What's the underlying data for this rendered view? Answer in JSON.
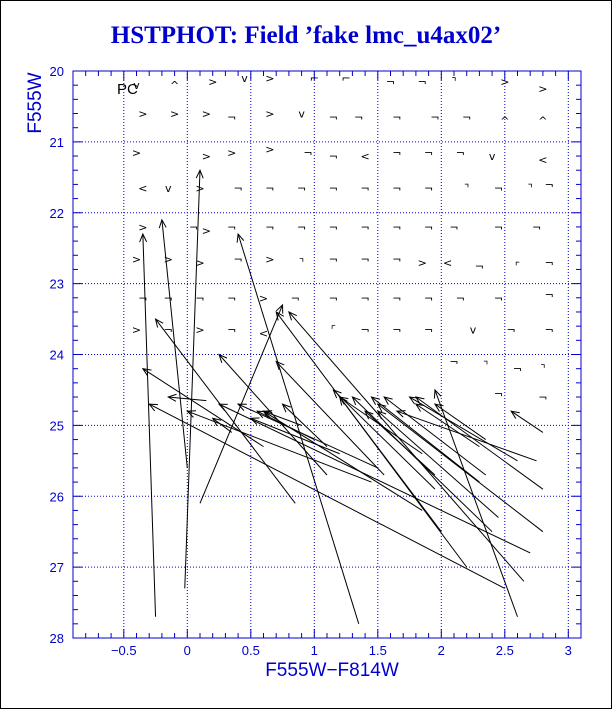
{
  "colors": {
    "axis": "#0000cc",
    "grid": "#0000cc",
    "marks": "#000000",
    "title": "#0000cc"
  },
  "chart_data": {
    "type": "scatter",
    "title": "HSTPHOT: Field ’fake lmc_u4ax02’",
    "xlabel": "F555W−F814W",
    "ylabel": "F555W",
    "panel_label": "PC",
    "xlim": [
      -0.9,
      3.1
    ],
    "ylim": [
      28,
      20
    ],
    "y_inverted": true,
    "grid": true,
    "x_ticks": [
      -0.5,
      0,
      0.5,
      1,
      1.5,
      2,
      2.5,
      3
    ],
    "x_tick_labels": [
      "−0.5",
      "0",
      "0.5",
      "1",
      "1.5",
      "2",
      "2.5",
      "3"
    ],
    "y_ticks": [
      20,
      21,
      22,
      23,
      24,
      25,
      26,
      27,
      28
    ],
    "y_tick_labels": [
      "20",
      "21",
      "22",
      "23",
      "24",
      "25",
      "26",
      "27",
      "28"
    ],
    "marker_glyphs": [
      "v",
      "^",
      ">",
      "<",
      "⌐",
      "¬",
      "⌝",
      "⌜"
    ],
    "small_markers": [
      [
        -0.4,
        20.2,
        "v"
      ],
      [
        -0.1,
        20.2,
        "^"
      ],
      [
        0.2,
        20.15,
        ">"
      ],
      [
        0.45,
        20.1,
        "v"
      ],
      [
        0.65,
        20.1,
        ">"
      ],
      [
        1.0,
        20.1,
        "⌐"
      ],
      [
        1.25,
        20.1,
        "⌐"
      ],
      [
        1.6,
        20.15,
        "¬"
      ],
      [
        1.85,
        20.15,
        "¬"
      ],
      [
        2.1,
        20.15,
        "⌝"
      ],
      [
        2.5,
        20.15,
        ">"
      ],
      [
        2.8,
        20.25,
        ">"
      ],
      [
        -0.35,
        20.6,
        ">"
      ],
      [
        -0.1,
        20.6,
        ">"
      ],
      [
        0.15,
        20.6,
        ">"
      ],
      [
        0.35,
        20.65,
        "¬"
      ],
      [
        0.65,
        20.6,
        ">"
      ],
      [
        0.9,
        20.6,
        "v"
      ],
      [
        1.15,
        20.65,
        "¬"
      ],
      [
        1.35,
        20.65,
        "¬"
      ],
      [
        1.65,
        20.65,
        "¬"
      ],
      [
        1.95,
        20.65,
        "¬"
      ],
      [
        2.2,
        20.65,
        "¬"
      ],
      [
        2.5,
        20.7,
        "^"
      ],
      [
        2.8,
        20.7,
        "^"
      ],
      [
        -0.4,
        21.15,
        ">"
      ],
      [
        0.15,
        21.2,
        ">"
      ],
      [
        0.35,
        21.15,
        ">"
      ],
      [
        0.65,
        21.1,
        ">"
      ],
      [
        0.95,
        21.15,
        "¬"
      ],
      [
        1.15,
        21.2,
        "¬"
      ],
      [
        1.4,
        21.2,
        "<"
      ],
      [
        1.65,
        21.15,
        "¬"
      ],
      [
        1.9,
        21.15,
        "¬"
      ],
      [
        2.15,
        21.15,
        "¬"
      ],
      [
        2.4,
        21.2,
        "v"
      ],
      [
        2.8,
        21.25,
        "<"
      ],
      [
        -0.35,
        21.65,
        "<"
      ],
      [
        -0.15,
        21.65,
        "v"
      ],
      [
        0.1,
        21.65,
        ">"
      ],
      [
        0.4,
        21.65,
        "¬"
      ],
      [
        0.65,
        21.65,
        "¬"
      ],
      [
        0.9,
        21.65,
        "¬"
      ],
      [
        1.15,
        21.65,
        "¬"
      ],
      [
        1.4,
        21.65,
        "¬"
      ],
      [
        1.65,
        21.65,
        "¬"
      ],
      [
        1.9,
        21.65,
        "¬"
      ],
      [
        2.2,
        21.65,
        "⌝"
      ],
      [
        2.45,
        21.65,
        "¬"
      ],
      [
        2.7,
        21.65,
        "⌝"
      ],
      [
        2.85,
        21.6,
        "¬"
      ],
      [
        -0.35,
        22.2,
        ">"
      ],
      [
        0.05,
        22.2,
        "¬"
      ],
      [
        0.15,
        22.25,
        ">"
      ],
      [
        0.35,
        22.2,
        "¬"
      ],
      [
        0.65,
        22.2,
        "¬"
      ],
      [
        0.9,
        22.2,
        "¬"
      ],
      [
        1.15,
        22.2,
        "¬"
      ],
      [
        1.4,
        22.2,
        "¬"
      ],
      [
        1.65,
        22.2,
        "¬"
      ],
      [
        1.9,
        22.2,
        "¬"
      ],
      [
        2.1,
        22.2,
        "¬"
      ],
      [
        2.45,
        22.2,
        "¬"
      ],
      [
        2.75,
        22.2,
        "¬"
      ],
      [
        -0.4,
        22.65,
        ">"
      ],
      [
        -0.15,
        22.65,
        ">"
      ],
      [
        0.1,
        22.7,
        ">"
      ],
      [
        0.4,
        22.65,
        "¬"
      ],
      [
        0.65,
        22.65,
        ">"
      ],
      [
        0.9,
        22.7,
        "⌝"
      ],
      [
        1.15,
        22.65,
        "¬"
      ],
      [
        1.4,
        22.65,
        "¬"
      ],
      [
        1.65,
        22.65,
        "¬"
      ],
      [
        1.85,
        22.7,
        ">"
      ],
      [
        2.05,
        22.7,
        "<"
      ],
      [
        2.3,
        22.75,
        "¬"
      ],
      [
        2.6,
        22.75,
        "⌜"
      ],
      [
        2.85,
        22.7,
        "¬"
      ],
      [
        -0.35,
        23.2,
        "¬"
      ],
      [
        -0.15,
        23.2,
        "¬"
      ],
      [
        0.1,
        23.2,
        "¬"
      ],
      [
        0.35,
        23.2,
        "¬"
      ],
      [
        0.6,
        23.2,
        ">"
      ],
      [
        0.85,
        23.2,
        "¬"
      ],
      [
        1.15,
        23.2,
        "¬"
      ],
      [
        1.4,
        23.2,
        "¬"
      ],
      [
        1.65,
        23.2,
        "¬"
      ],
      [
        1.9,
        23.2,
        "¬"
      ],
      [
        2.15,
        23.2,
        "¬"
      ],
      [
        2.45,
        23.2,
        "¬"
      ],
      [
        2.85,
        23.15,
        "¬"
      ],
      [
        -0.4,
        23.65,
        ">"
      ],
      [
        -0.15,
        23.65,
        "¬"
      ],
      [
        0.1,
        23.65,
        ">"
      ],
      [
        0.35,
        23.65,
        "¬"
      ],
      [
        0.6,
        23.7,
        "<"
      ],
      [
        1.15,
        23.65,
        "⌜"
      ],
      [
        1.4,
        23.65,
        "¬"
      ],
      [
        1.65,
        23.65,
        "¬"
      ],
      [
        1.9,
        23.65,
        "¬"
      ],
      [
        2.25,
        23.65,
        "v"
      ],
      [
        2.55,
        23.65,
        "¬"
      ],
      [
        2.85,
        23.65,
        "¬"
      ],
      [
        2.1,
        24.1,
        "¬"
      ],
      [
        2.35,
        24.15,
        "⌝"
      ],
      [
        2.6,
        24.2,
        "¬"
      ],
      [
        2.8,
        24.2,
        "⌝"
      ],
      [
        2.45,
        24.55,
        "¬"
      ],
      [
        2.8,
        24.6,
        "¬"
      ]
    ],
    "error_vectors": [
      [
        -0.25,
        27.7,
        -0.35,
        22.3
      ],
      [
        -0.02,
        27.3,
        0.1,
        21.4
      ],
      [
        0.1,
        26.1,
        0.75,
        23.3
      ],
      [
        0.0,
        25.6,
        -0.2,
        22.1
      ],
      [
        1.35,
        27.8,
        0.4,
        22.3
      ],
      [
        0.85,
        26.1,
        -0.25,
        23.5
      ],
      [
        2.6,
        27.7,
        1.95,
        24.5
      ],
      [
        2.5,
        27.3,
        -0.3,
        24.7
      ],
      [
        0.6,
        25.3,
        -0.35,
        24.2
      ],
      [
        2.8,
        25.1,
        2.55,
        24.8
      ],
      [
        2.7,
        26.8,
        0.25,
        24.7
      ],
      [
        2.8,
        26.5,
        1.5,
        24.7
      ],
      [
        2.8,
        25.9,
        1.8,
        24.6
      ],
      [
        2.75,
        25.5,
        1.65,
        24.8
      ],
      [
        2.6,
        25.5,
        1.75,
        24.6
      ],
      [
        2.35,
        25.2,
        1.95,
        24.7
      ],
      [
        1.85,
        26.2,
        0.6,
        24.8
      ],
      [
        1.55,
        25.7,
        0.7,
        24.1
      ],
      [
        1.1,
        25.7,
        0.25,
        24.0
      ],
      [
        1.5,
        25.6,
        0.4,
        24.7
      ],
      [
        2.0,
        26.5,
        1.2,
        24.6
      ],
      [
        2.4,
        26.5,
        1.3,
        24.6
      ],
      [
        2.35,
        25.7,
        1.55,
        24.6
      ],
      [
        1.1,
        25.3,
        0.75,
        24.7
      ],
      [
        2.2,
        27.0,
        0.7,
        23.4
      ],
      [
        2.65,
        27.2,
        0.8,
        23.4
      ],
      [
        1.45,
        25.8,
        0.0,
        24.8
      ],
      [
        1.95,
        25.9,
        1.15,
        24.5
      ],
      [
        2.45,
        26.3,
        1.5,
        24.8
      ],
      [
        2.3,
        25.8,
        1.45,
        24.6
      ],
      [
        1.95,
        25.7,
        1.4,
        24.8
      ],
      [
        1.85,
        25.4,
        1.2,
        24.6
      ],
      [
        0.9,
        25.0,
        0.6,
        24.8
      ],
      [
        0.35,
        25.1,
        0.2,
        24.9
      ],
      [
        2.3,
        25.3,
        1.8,
        24.7
      ],
      [
        1.2,
        25.4,
        0.5,
        24.9
      ],
      [
        1.0,
        25.2,
        0.55,
        24.8
      ]
    ],
    "open_arrow_heads": [
      [
        0.15,
        24.65,
        -0.15,
        24.6
      ]
    ]
  }
}
